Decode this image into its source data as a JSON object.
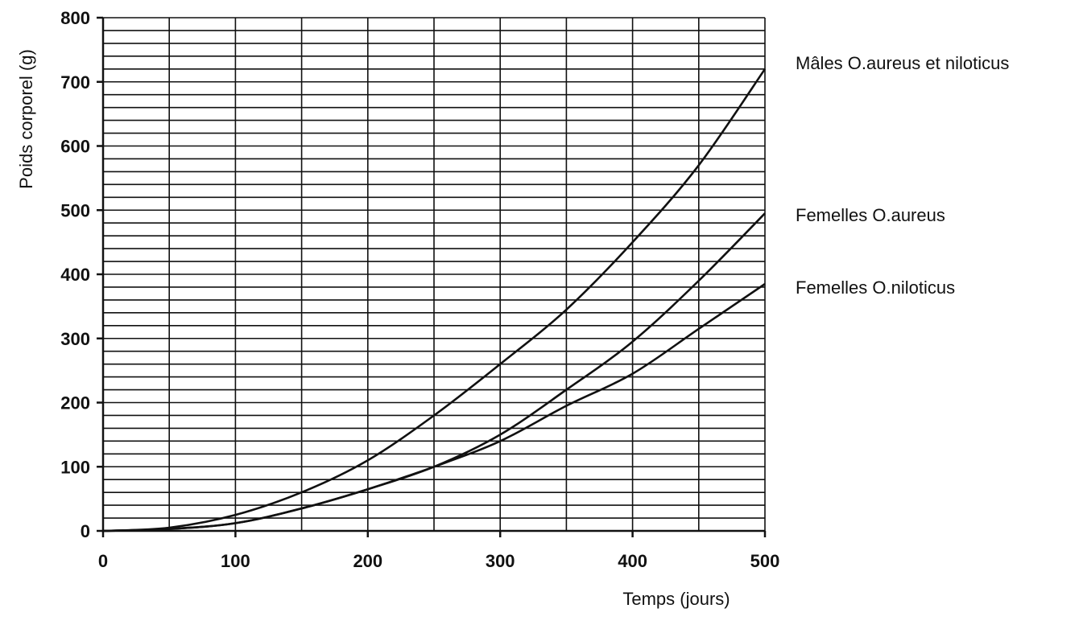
{
  "chart_data": {
    "type": "line",
    "title": "",
    "xlabel": "Temps (jours)",
    "ylabel": "Poids corporel (g)",
    "xlim": [
      0,
      500
    ],
    "ylim": [
      0,
      800
    ],
    "x_ticks": [
      0,
      100,
      200,
      300,
      400,
      500
    ],
    "x_tick_labels": [
      "0",
      "100",
      "200",
      "300",
      "400",
      "500"
    ],
    "y_ticks": [
      0,
      100,
      200,
      300,
      400,
      500,
      600,
      700,
      800
    ],
    "y_tick_labels": [
      "0",
      "100",
      "200",
      "300",
      "400",
      "500",
      "600",
      "700",
      "800"
    ],
    "grid": true,
    "legend": "labels at line ends (right)",
    "line_color": "#111111",
    "x": [
      0,
      50,
      100,
      150,
      200,
      250,
      300,
      350,
      400,
      450,
      500
    ],
    "series": [
      {
        "name": "Mâles O.aureus et niloticus",
        "values": [
          0,
          5,
          25,
          60,
          110,
          180,
          260,
          345,
          450,
          570,
          720
        ]
      },
      {
        "name": "Femelles O.aureus",
        "values": [
          0,
          3,
          12,
          35,
          65,
          100,
          150,
          220,
          295,
          390,
          495
        ]
      },
      {
        "name": "Femelles O.niloticus",
        "values": [
          0,
          3,
          12,
          35,
          65,
          100,
          140,
          195,
          245,
          315,
          385
        ]
      }
    ]
  }
}
